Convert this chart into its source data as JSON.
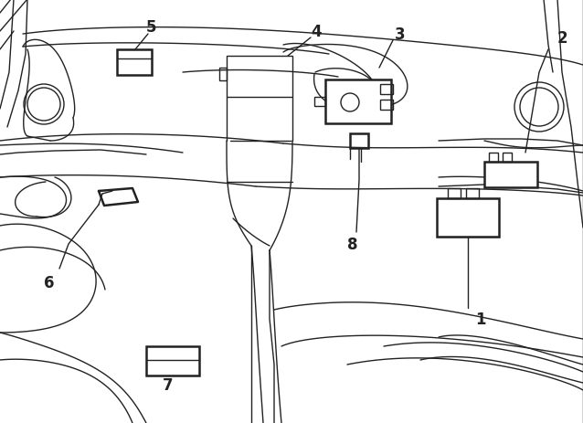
{
  "background_color": "#ffffff",
  "line_color": "#222222",
  "lw": 1.0,
  "tlw": 1.8,
  "figsize": [
    6.38,
    4.64
  ],
  "dpi": 100,
  "label_fontsize": 12
}
